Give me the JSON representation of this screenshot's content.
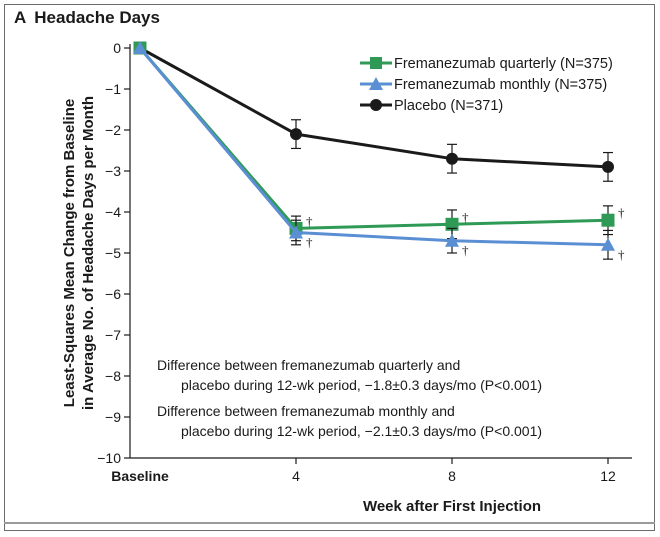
{
  "chart_data": {
    "type": "line",
    "panel_letter": "A",
    "title": "Headache Days",
    "xlabel": "Week after First Injection",
    "ylabel_lines": [
      "Least-Squares Mean Change from Baseline",
      "in Average No. of Headache Days per Month"
    ],
    "categories": [
      "Baseline",
      "4",
      "8",
      "12"
    ],
    "ylim": [
      -10,
      0
    ],
    "yticks": [
      0,
      -1,
      -2,
      -3,
      -4,
      -5,
      -6,
      -7,
      -8,
      -9,
      -10
    ],
    "ytick_labels": [
      "0",
      "−1",
      "−2",
      "−3",
      "−4",
      "−5",
      "−6",
      "−7",
      "−8",
      "−9",
      "−10"
    ],
    "series": [
      {
        "name": "Fremanezumab quarterly (N=375)",
        "color": "#2e9a55",
        "marker": "square",
        "values": [
          0,
          -4.4,
          -4.3,
          -4.2
        ],
        "errors": [
          0,
          0.3,
          0.35,
          0.35
        ],
        "dagger": [
          false,
          true,
          true,
          true
        ]
      },
      {
        "name": "Fremanezumab monthly (N=375)",
        "color": "#5b8fd4",
        "marker": "triangle",
        "values": [
          0,
          -4.5,
          -4.7,
          -4.8
        ],
        "errors": [
          0,
          0.3,
          0.3,
          0.35
        ],
        "dagger": [
          false,
          true,
          true,
          true
        ]
      },
      {
        "name": "Placebo (N=371)",
        "color": "#1a1a1a",
        "marker": "circle",
        "values": [
          0,
          -2.1,
          -2.7,
          -2.9
        ],
        "errors": [
          0,
          0.35,
          0.35,
          0.35
        ],
        "dagger": [
          false,
          false,
          false,
          false
        ]
      }
    ],
    "dagger_symbol": "†",
    "annotations": [
      "Difference between fremanezumab quarterly and",
      "placebo during 12-wk period, −1.8±0.3 days/mo (P<0.001)",
      "Difference between fremanezumab monthly and",
      "placebo during 12-wk period, −2.1±0.3 days/mo (P<0.001)"
    ],
    "legend_position": "top-right"
  }
}
